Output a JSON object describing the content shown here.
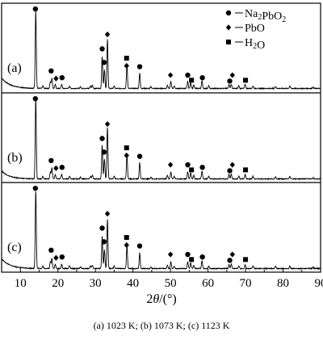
{
  "caption": "(a) 1023 K; (b) 1073 K; (c) 1123 K",
  "chart_data": {
    "type": "line",
    "xlabel": "2θ/(°)",
    "xlim": [
      5,
      90
    ],
    "xticks": [
      10,
      20,
      30,
      40,
      50,
      60,
      70,
      80,
      90
    ],
    "legend": [
      {
        "marker": "circle",
        "label": "Na₂PbO₂"
      },
      {
        "marker": "diamond",
        "label": "PbO"
      },
      {
        "marker": "square",
        "label": "H₂O"
      }
    ],
    "legend_position": "top-right",
    "panels": [
      {
        "label": "(a)"
      },
      {
        "label": "(b)"
      },
      {
        "label": "(c)"
      }
    ],
    "peaks": [
      {
        "x": 14.1,
        "h": 0.92
      },
      {
        "x": 16.0,
        "h": 0.03
      },
      {
        "x": 18.0,
        "h": 0.08
      },
      {
        "x": 18.4,
        "h": 0.12
      },
      {
        "x": 19.3,
        "h": 0.05
      },
      {
        "x": 21.0,
        "h": 0.05
      },
      {
        "x": 23.1,
        "h": 0.03
      },
      {
        "x": 26.0,
        "h": 0.02
      },
      {
        "x": 28.7,
        "h": 0.03
      },
      {
        "x": 29.2,
        "h": 0.04
      },
      {
        "x": 31.8,
        "h": 0.38
      },
      {
        "x": 32.4,
        "h": 0.22
      },
      {
        "x": 33.2,
        "h": 0.58
      },
      {
        "x": 35.0,
        "h": 0.03
      },
      {
        "x": 38.4,
        "h": 0.27
      },
      {
        "x": 41.8,
        "h": 0.18
      },
      {
        "x": 44.8,
        "h": 0.02
      },
      {
        "x": 49.2,
        "h": 0.04
      },
      {
        "x": 50.1,
        "h": 0.08
      },
      {
        "x": 51.0,
        "h": 0.03
      },
      {
        "x": 54.6,
        "h": 0.08
      },
      {
        "x": 55.4,
        "h": 0.07
      },
      {
        "x": 56.2,
        "h": 0.04
      },
      {
        "x": 58.4,
        "h": 0.09
      },
      {
        "x": 60.2,
        "h": 0.03
      },
      {
        "x": 65.6,
        "h": 0.05
      },
      {
        "x": 66.2,
        "h": 0.05
      },
      {
        "x": 68.2,
        "h": 0.03
      },
      {
        "x": 69.9,
        "h": 0.05
      },
      {
        "x": 72.0,
        "h": 0.03
      },
      {
        "x": 78.0,
        "h": 0.025
      },
      {
        "x": 81.8,
        "h": 0.03
      },
      {
        "x": 88.0,
        "h": 0.015
      }
    ],
    "markers": [
      {
        "x": 14.0,
        "sym": "circle",
        "level": 0.97
      },
      {
        "x": 18.2,
        "sym": "circle",
        "level": 0.24
      },
      {
        "x": 19.5,
        "sym": "diamond",
        "level": 0.15
      },
      {
        "x": 21.1,
        "sym": "circle",
        "level": 0.16
      },
      {
        "x": 31.8,
        "sym": "circle",
        "level": 0.5
      },
      {
        "x": 32.3,
        "sym": "circle",
        "level": 0.34
      },
      {
        "x": 33.2,
        "sym": "diamond",
        "level": 0.67
      },
      {
        "x": 38.3,
        "sym": "square",
        "level": 0.39
      },
      {
        "x": 38.3,
        "sym": "diamond",
        "level": 0.3
      },
      {
        "x": 41.8,
        "sym": "circle",
        "level": 0.29
      },
      {
        "x": 50.0,
        "sym": "diamond",
        "level": 0.19
      },
      {
        "x": 54.6,
        "sym": "circle",
        "level": 0.19
      },
      {
        "x": 55.6,
        "sym": "square",
        "level": 0.13
      },
      {
        "x": 58.5,
        "sym": "circle",
        "level": 0.16
      },
      {
        "x": 65.8,
        "sym": "circle",
        "level": 0.12
      },
      {
        "x": 66.5,
        "sym": "diamond",
        "level": 0.19
      },
      {
        "x": 70.0,
        "sym": "square",
        "level": 0.13
      }
    ]
  }
}
